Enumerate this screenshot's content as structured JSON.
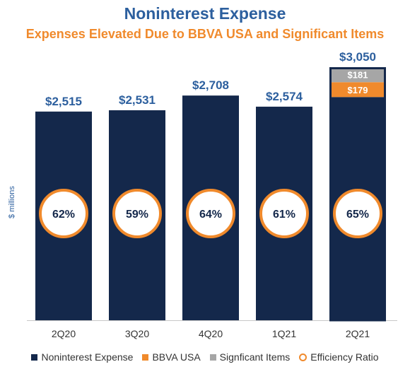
{
  "title": "Noninterest Expense",
  "subtitle": "Expenses Elevated Due to BBVA USA and Significant Items",
  "colors": {
    "noninterest": "#14284b",
    "bbva": "#f08a2c",
    "significant": "#a6a6a6",
    "ring": "#f08a2c",
    "title": "#2c5f9e"
  },
  "chart_data": {
    "type": "bar",
    "title": "Noninterest Expense",
    "subtitle": "Expenses Elevated Due to BBVA USA and Significant Items",
    "ylabel": "$ millions",
    "ylim": [
      0,
      3050
    ],
    "categories": [
      "2Q20",
      "3Q20",
      "4Q20",
      "1Q21",
      "2Q21"
    ],
    "totals": [
      2515,
      2531,
      2708,
      2574,
      3050
    ],
    "total_labels": [
      "$2,515",
      "$2,531",
      "$2,708",
      "$2,574",
      "$3,050"
    ],
    "series": [
      {
        "name": "Noninterest Expense",
        "values": [
          2515,
          2531,
          2708,
          2574,
          2690
        ]
      },
      {
        "name": "BBVA USA",
        "values": [
          0,
          0,
          0,
          0,
          179
        ],
        "labels": [
          "",
          "",
          "",
          "",
          "$179"
        ]
      },
      {
        "name": "Signficant Items",
        "values": [
          0,
          0,
          0,
          0,
          181
        ],
        "labels": [
          "",
          "",
          "",
          "",
          "$181"
        ]
      }
    ],
    "efficiency_ratio": {
      "name": "Efficiency Ratio",
      "values": [
        62,
        59,
        64,
        61,
        65
      ],
      "labels": [
        "62%",
        "59%",
        "64%",
        "61%",
        "65%"
      ]
    },
    "legend": [
      "Noninterest Expense",
      "BBVA USA",
      "Signficant Items",
      "Efficiency Ratio"
    ],
    "legend_position": "bottom",
    "grid": false
  }
}
